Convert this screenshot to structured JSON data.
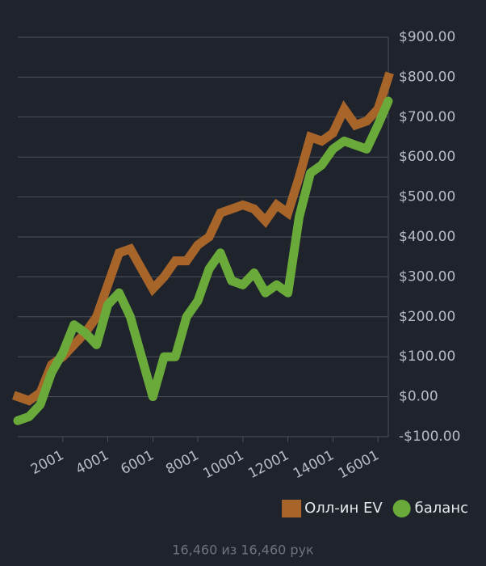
{
  "chart_data": {
    "type": "line",
    "x": [
      1,
      500,
      1000,
      1500,
      2000,
      2500,
      3000,
      3500,
      4000,
      4500,
      5000,
      5500,
      6000,
      6500,
      7000,
      7500,
      8000,
      8500,
      9000,
      9500,
      10000,
      10500,
      11000,
      11500,
      12000,
      12500,
      13000,
      13500,
      14000,
      14500,
      15000,
      15500,
      16000,
      16460
    ],
    "series": [
      {
        "name": "Олл-ин EV",
        "color": "#a8652a",
        "marker": "square",
        "values": [
          0,
          -10,
          10,
          80,
          100,
          130,
          160,
          200,
          280,
          360,
          370,
          320,
          270,
          300,
          340,
          340,
          380,
          400,
          460,
          470,
          480,
          470,
          440,
          480,
          460,
          550,
          650,
          640,
          660,
          720,
          680,
          690,
          720,
          800
        ]
      },
      {
        "name": "баланс",
        "color": "#6aaa3a",
        "marker": "circle",
        "values": [
          -60,
          -50,
          -20,
          60,
          110,
          180,
          160,
          130,
          230,
          260,
          200,
          100,
          0,
          100,
          100,
          200,
          240,
          320,
          360,
          290,
          280,
          310,
          260,
          280,
          260,
          450,
          560,
          580,
          620,
          640,
          630,
          620,
          680,
          740
        ]
      }
    ],
    "xlim": [
      0,
      16460
    ],
    "xticks": [
      2001,
      4001,
      6001,
      8001,
      10001,
      12001,
      14001,
      16001
    ],
    "ylim": [
      -100,
      900
    ],
    "yticks": [
      {
        "value": -100,
        "label": "-$100.00"
      },
      {
        "value": 0,
        "label": "$0.00"
      },
      {
        "value": 100,
        "label": "$100.00"
      },
      {
        "value": 200,
        "label": "$200.00"
      },
      {
        "value": 300,
        "label": "$300.00"
      },
      {
        "value": 400,
        "label": "$400.00"
      },
      {
        "value": 500,
        "label": "$500.00"
      },
      {
        "value": 600,
        "label": "$600.00"
      },
      {
        "value": 700,
        "label": "$700.00"
      },
      {
        "value": 800,
        "label": "$800.00"
      },
      {
        "value": 900,
        "label": "$900.00"
      }
    ],
    "grid": true,
    "legend": "bottom-right",
    "footer": "16,460 из 16,460 рук"
  }
}
